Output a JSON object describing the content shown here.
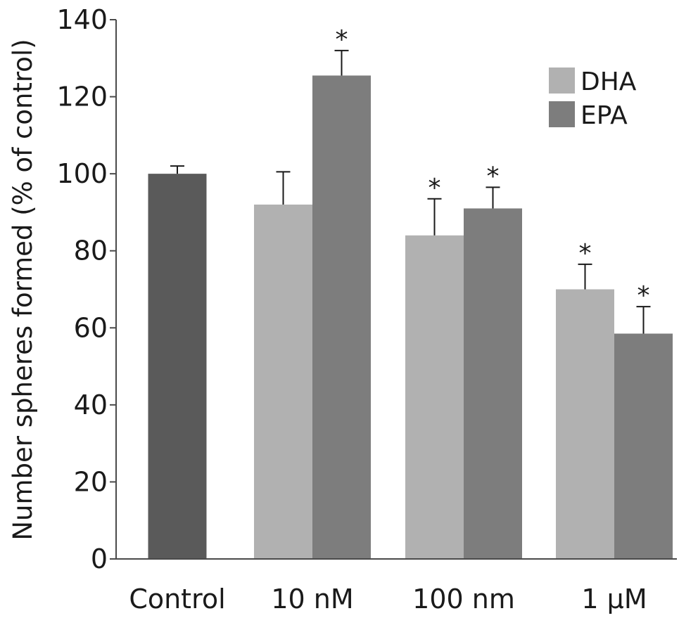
{
  "chart_data": {
    "type": "bar",
    "title": "",
    "xlabel": "",
    "ylabel": "Number spheres formed (% of control)",
    "ylim": [
      0,
      140
    ],
    "yticks": [
      0,
      20,
      40,
      60,
      80,
      100,
      120,
      140
    ],
    "grid": false,
    "legend_position": "top-right",
    "categories": [
      "Control",
      "10 nM",
      "100 nm",
      "1 μM"
    ],
    "series": [
      {
        "name": "Control",
        "color": "#5a5a5a",
        "show_in_legend": false,
        "values": [
          100,
          null,
          null,
          null
        ],
        "errors": [
          2,
          null,
          null,
          null
        ],
        "significant": [
          false,
          false,
          false,
          false
        ]
      },
      {
        "name": "DHA",
        "color": "#b1b1b1",
        "show_in_legend": true,
        "values": [
          null,
          92,
          84,
          70
        ],
        "errors": [
          null,
          8.5,
          9.5,
          6.5
        ],
        "significant": [
          false,
          false,
          true,
          true
        ]
      },
      {
        "name": "EPA",
        "color": "#7d7d7d",
        "show_in_legend": true,
        "values": [
          null,
          125.5,
          91,
          58.5
        ],
        "errors": [
          null,
          6.5,
          5.5,
          7
        ],
        "significant": [
          false,
          true,
          true,
          true
        ]
      }
    ],
    "significance_marker": "*"
  }
}
